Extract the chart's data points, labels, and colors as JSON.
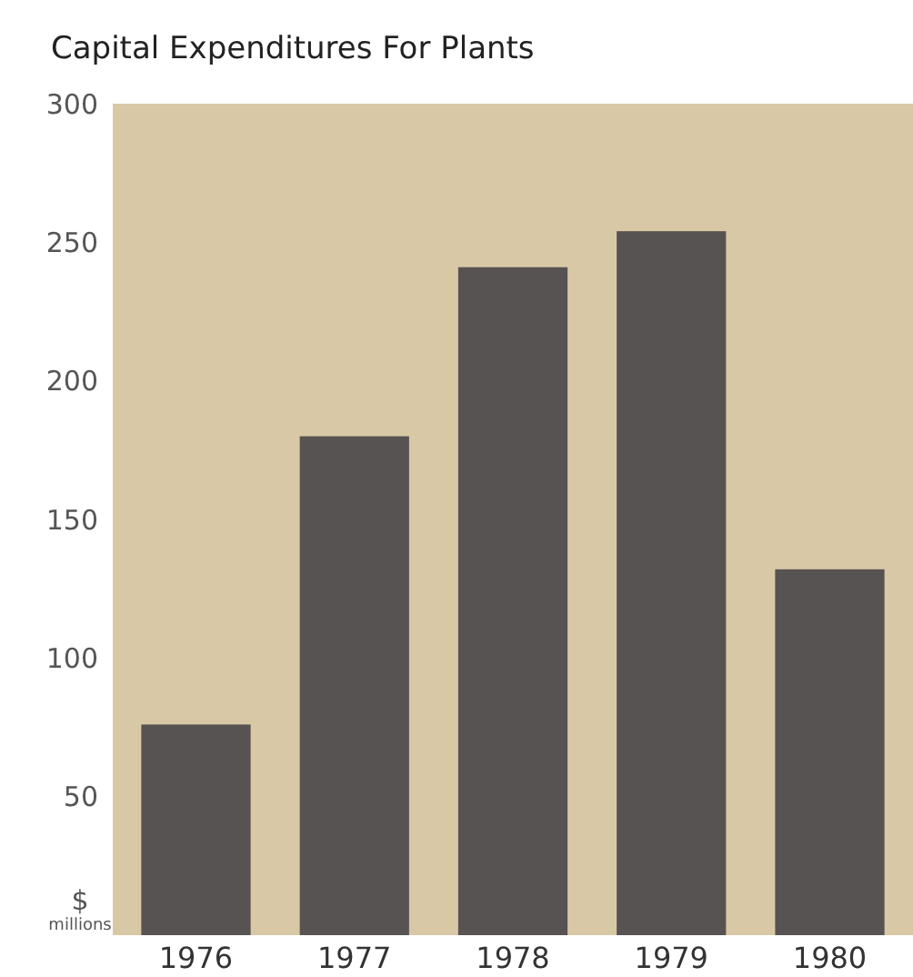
{
  "chart_data": {
    "type": "bar",
    "title": "Capital Expenditures For Plants",
    "ylabel": "$ millions",
    "categories": [
      "1976",
      "1977",
      "1978",
      "1979",
      "1980"
    ],
    "values": [
      76,
      180,
      241,
      254,
      132
    ],
    "color": "#575352",
    "ylim": [
      0,
      300
    ],
    "yticks": [
      50,
      100,
      150,
      200,
      250,
      300
    ],
    "grid": false
  }
}
